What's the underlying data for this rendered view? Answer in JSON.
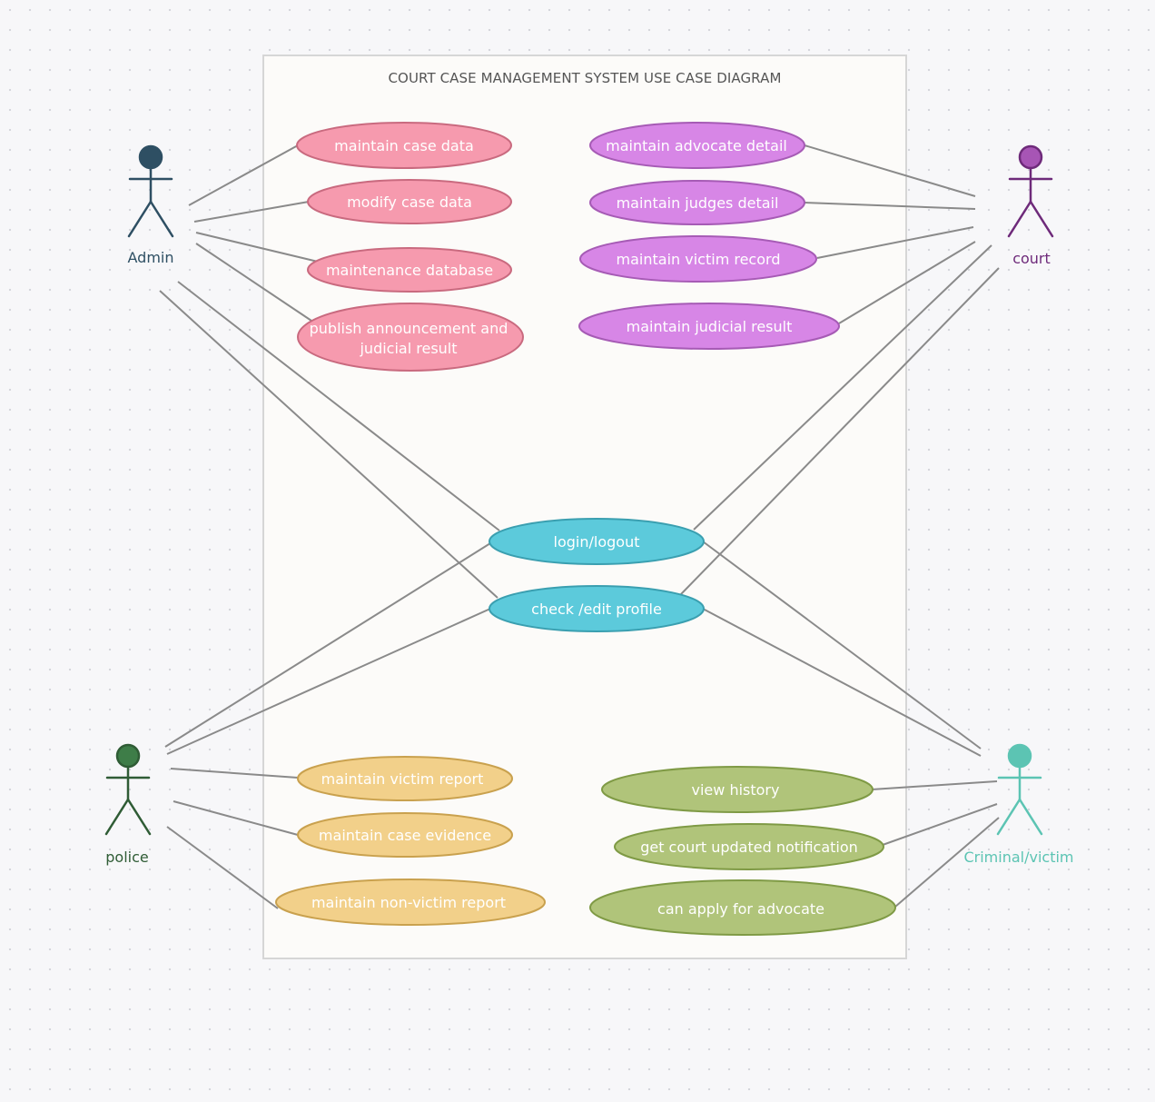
{
  "system": {
    "title": "COURT CASE MANAGEMENT SYSTEM USE CASE DIAGRAM"
  },
  "colors": {
    "admin": "#2e4f63",
    "court": "#a755b5",
    "court_label": "#6e2a7a",
    "police": "#3e7d48",
    "police_label": "#2f5c35",
    "criminal": "#5cc4b3",
    "pink_fill": "#f69aae",
    "pink_stroke": "#c96a7f",
    "violet_fill": "#d786e6",
    "violet_stroke": "#a65bb5",
    "cyan_fill": "#5ccadb",
    "cyan_stroke": "#3a9fb0",
    "gold_fill": "#f2d08a",
    "gold_stroke": "#c9a14e",
    "green_fill": "#b0c47a",
    "green_stroke": "#7f9a45",
    "line": "#8a8a8a",
    "boundary_fill": "#fcfbf9",
    "boundary_stroke": "#d6d6d6"
  },
  "actors": {
    "admin": "Admin",
    "court": "court",
    "police": "police",
    "criminal": "Criminal/victim"
  },
  "use_cases": {
    "maintain_case_data": "maintain case data",
    "modify_case_data": "modify case data",
    "maintenance_database": "maintenance database",
    "publish_line1": "publish announcement and",
    "publish_line2": "judicial result",
    "maintain_advocate_detail": "maintain advocate detail",
    "maintain_judges_detail": "maintain judges detail",
    "maintain_victim_record": "maintain victim record",
    "maintain_judicial_result": "maintain judicial result",
    "login_logout": "login/logout",
    "check_edit_profile": "check /edit profile",
    "maintain_victim_report": "maintain victim report",
    "maintain_case_evidence": "maintain case evidence",
    "maintain_non_victim_report": "maintain non-victim report",
    "view_history": "view history",
    "get_court_updated_notification": "get court updated notification",
    "can_apply_for_advocate": "can apply for advocate"
  }
}
